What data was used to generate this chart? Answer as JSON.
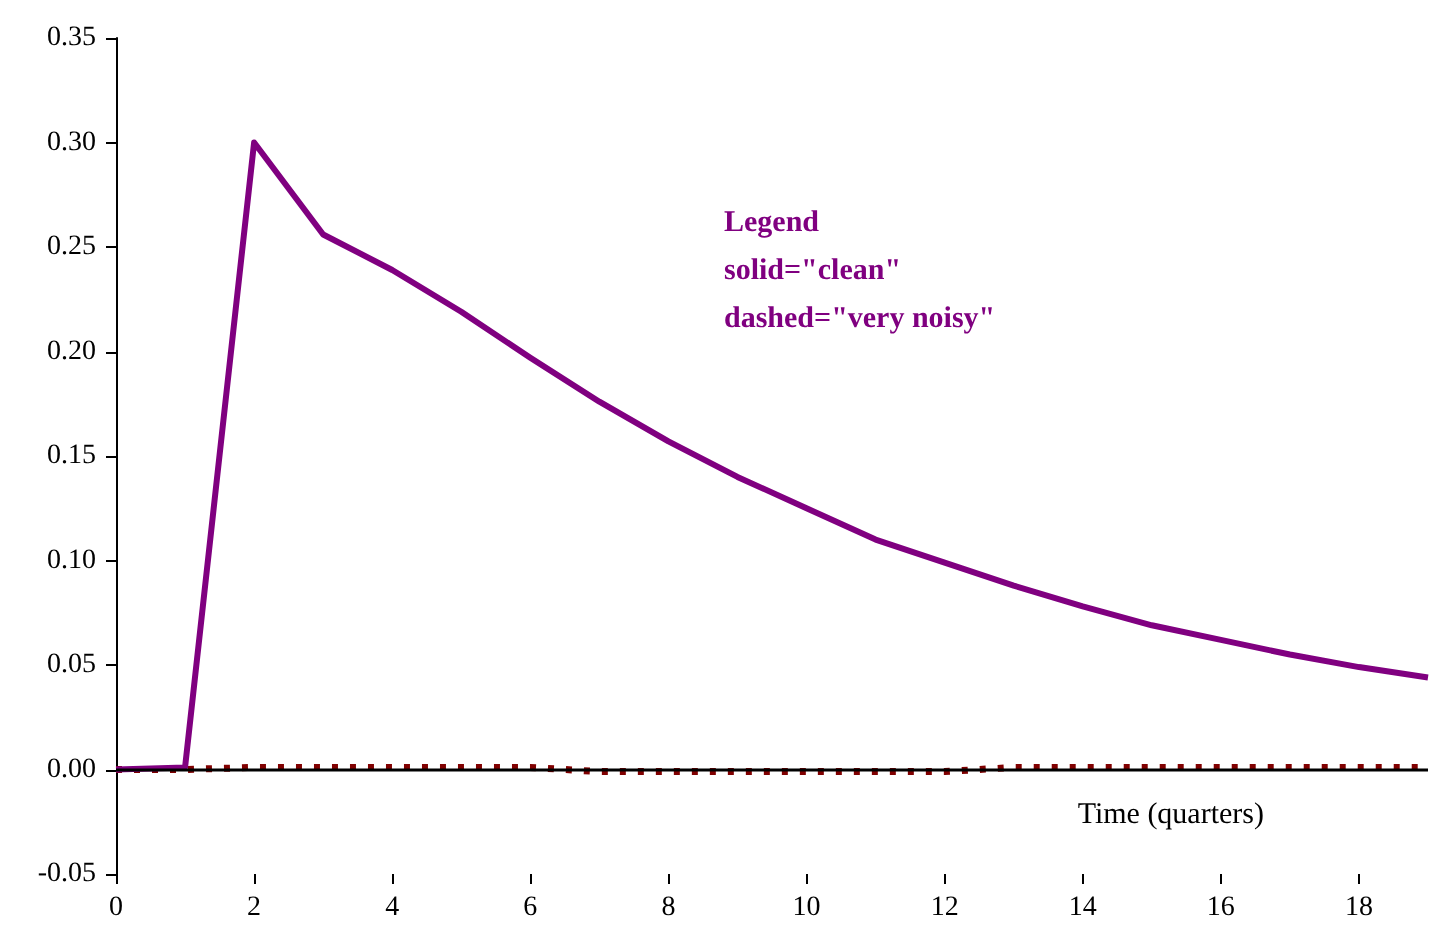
{
  "chart_data": {
    "type": "line",
    "xlabel": "Time (quarters)",
    "x": [
      0,
      1,
      2,
      3,
      4,
      5,
      6,
      7,
      8,
      9,
      10,
      11,
      12,
      13,
      14,
      15,
      16,
      17,
      18,
      19
    ],
    "series": [
      {
        "color": "#800080",
        "line_style": "solid",
        "values": [
          0,
          0.001,
          0.3,
          0.256,
          0.239,
          0.219,
          0.197,
          0.176,
          0.157,
          0.14,
          0.125,
          0.11,
          0.099,
          0.088,
          0.078,
          0.069,
          0.062,
          0.055,
          0.049,
          0.044
        ]
      },
      {
        "color": "#800000",
        "line_style": "dashed",
        "values": [
          0,
          0,
          0.001,
          0.001,
          0.001,
          0.001,
          0.001,
          -0.001,
          -0.001,
          -0.001,
          -0.001,
          -0.001,
          -0.001,
          0.001,
          0.001,
          0.001,
          0.001,
          0.001,
          0.001,
          0.001
        ]
      }
    ],
    "annotations": [
      "Legend",
      "solid=\"clean\"",
      "dashed=\"very noisy\""
    ],
    "xlim": [
      0,
      19
    ],
    "xticks": [
      0,
      2,
      4,
      6,
      8,
      10,
      12,
      14,
      16,
      18
    ],
    "ylim": [
      -0.05,
      0.35
    ],
    "yticks": [
      {
        "value": -0.05,
        "label": "-0.05"
      },
      {
        "value": 0,
        "label": "0.00"
      },
      {
        "value": 0.05,
        "label": "0.05"
      },
      {
        "value": 0.1,
        "label": "0.10"
      },
      {
        "value": 0.15,
        "label": "0.15"
      },
      {
        "value": 0.2,
        "label": "0.20"
      },
      {
        "value": 0.25,
        "label": "0.25"
      },
      {
        "value": 0.3,
        "label": "0.30"
      },
      {
        "value": 0.35,
        "label": "0.35"
      }
    ],
    "ref_lines": [
      {
        "axis": "y",
        "value": 0
      }
    ],
    "marker": "none"
  }
}
